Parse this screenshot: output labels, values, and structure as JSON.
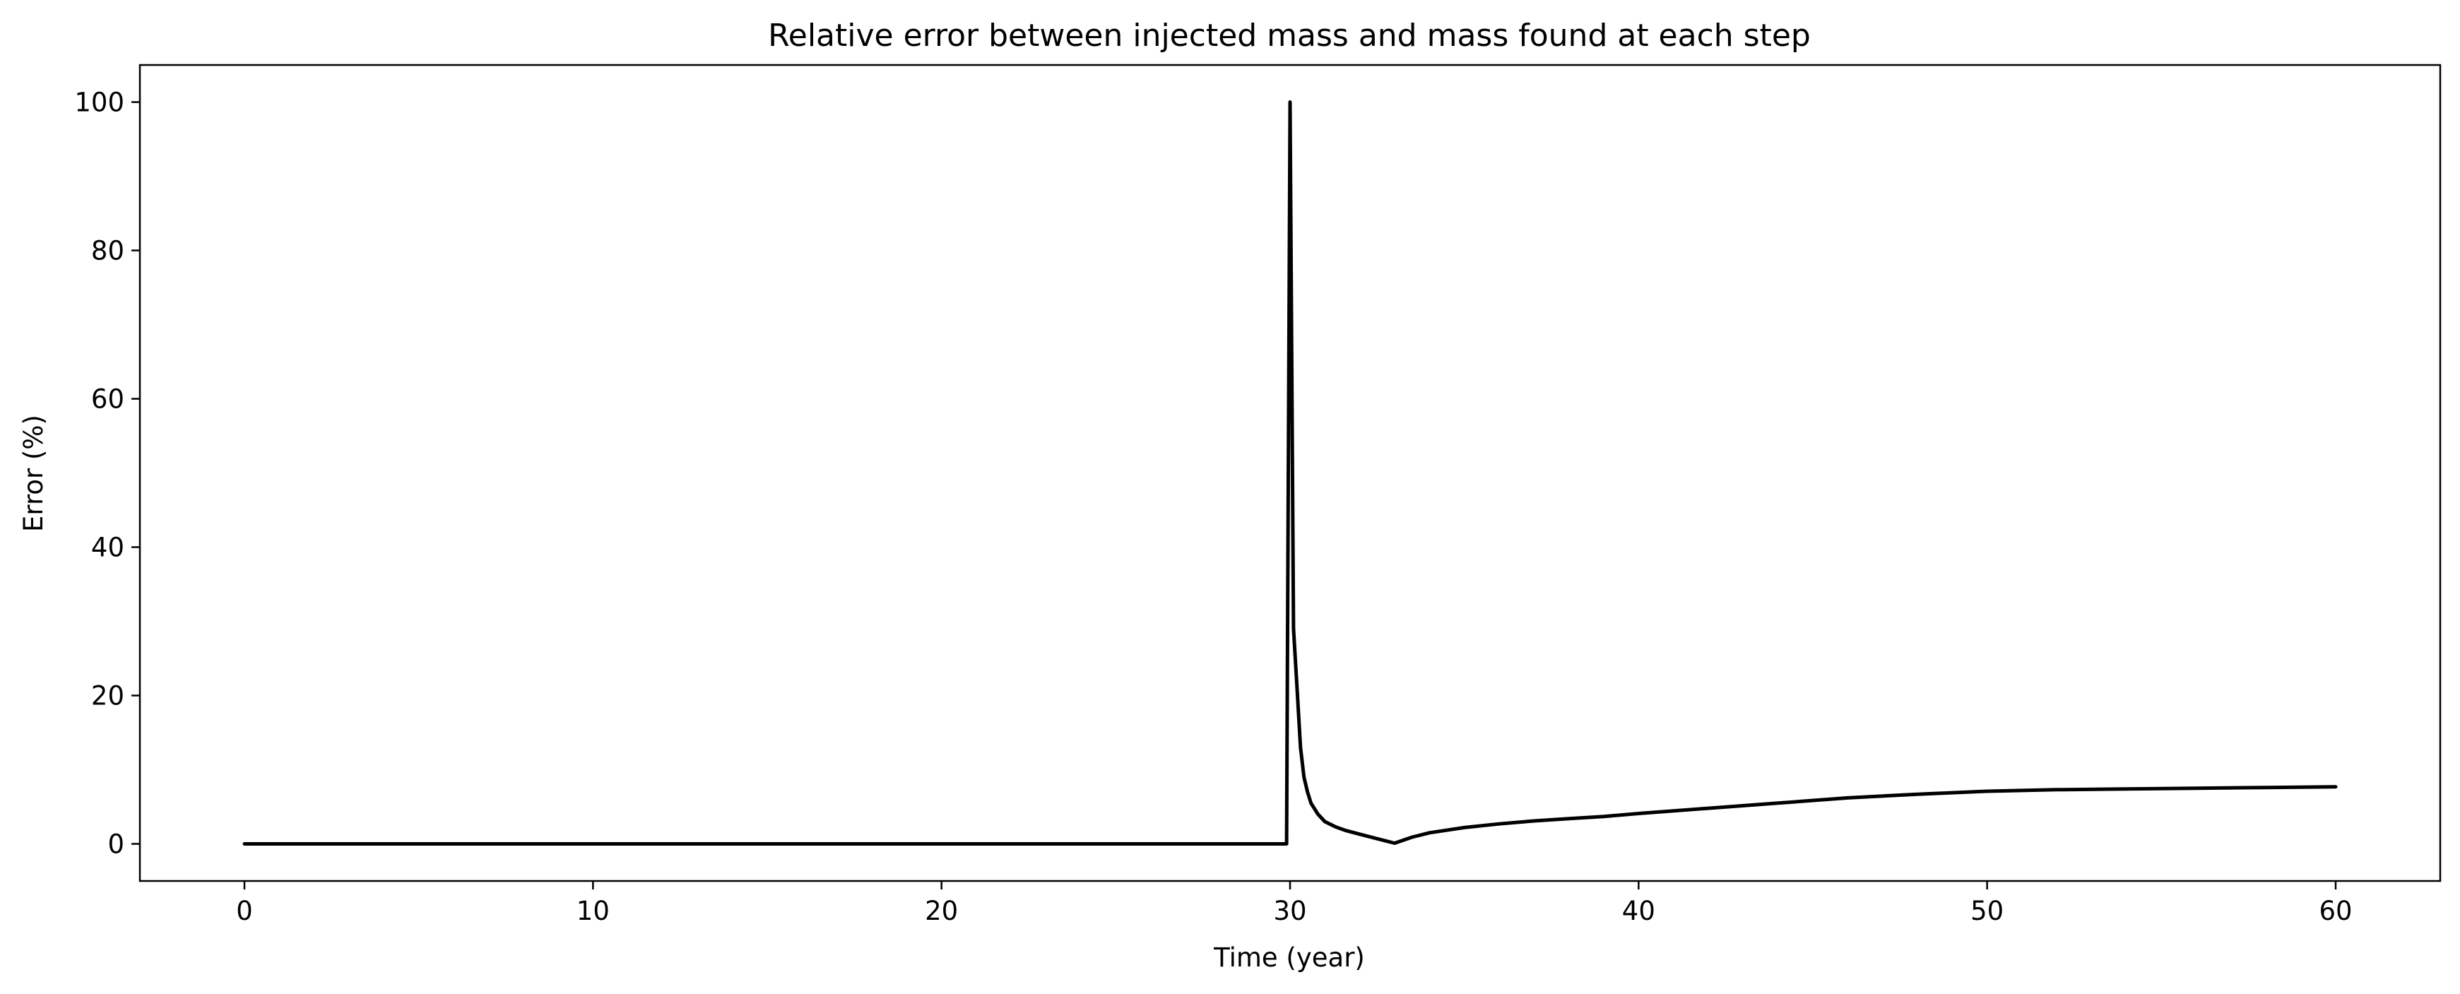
{
  "chart_data": {
    "type": "line",
    "title": "Relative error between injected mass and mass found at each step",
    "xlabel": "Time (year)",
    "ylabel": "Error (%)",
    "xlim": [
      -3,
      63
    ],
    "ylim": [
      -5,
      105
    ],
    "xticks": [
      0,
      10,
      20,
      30,
      40,
      50,
      60
    ],
    "yticks": [
      0,
      20,
      40,
      60,
      80,
      100
    ],
    "grid": false,
    "legend": "none",
    "line_color": "#000000",
    "series": [
      {
        "x": [
          0,
          5,
          10,
          15,
          20,
          25,
          29.9,
          30.0,
          30.1,
          30.2,
          30.3,
          30.4,
          30.5,
          30.6,
          30.8,
          31.0,
          31.3,
          31.6,
          32.0,
          32.5,
          33.0,
          33.5,
          34.0,
          35.0,
          36.0,
          37.0,
          38.0,
          39.0,
          40.0,
          42.0,
          44.0,
          46.0,
          48.0,
          50.0,
          52.0,
          54.0,
          56.0,
          58.0,
          60.0
        ],
        "y": [
          0,
          0,
          0,
          0,
          0,
          0,
          0,
          100,
          29,
          21,
          13,
          9,
          7,
          5.5,
          4,
          3,
          2.3,
          1.8,
          1.3,
          0.7,
          0.1,
          0.9,
          1.5,
          2.2,
          2.7,
          3.1,
          3.4,
          3.7,
          4.1,
          4.8,
          5.5,
          6.2,
          6.7,
          7.1,
          7.3,
          7.4,
          7.5,
          7.6,
          7.7
        ]
      }
    ]
  }
}
